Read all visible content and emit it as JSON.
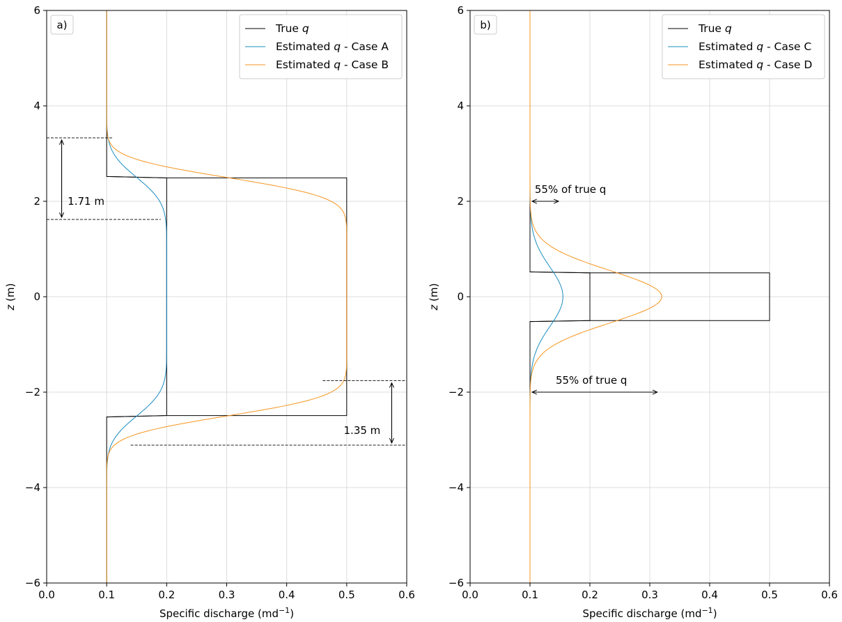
{
  "colors": {
    "true": "#000000",
    "case1": "#1a8cbf",
    "case2": "#f5951f",
    "grid": "#dcdcdc"
  },
  "chart_data": [
    {
      "type": "line",
      "panel_label": "a)",
      "xlabel": "Specific discharge (md",
      "xlabel_sup": "−1",
      "xlabel_close": ")",
      "ylabel_var": "z",
      "ylabel_unit": " (m)",
      "xlim": [
        0,
        0.6
      ],
      "ylim": [
        -6,
        6
      ],
      "x_ticks": [
        "0.0",
        "0.1",
        "0.2",
        "0.3",
        "0.4",
        "0.5",
        "0.6"
      ],
      "y_ticks": [
        "−6",
        "−4",
        "−2",
        "0",
        "2",
        "4",
        "6"
      ],
      "grid": true,
      "legend": {
        "placement": "top-right",
        "entries": [
          {
            "prefix": "True ",
            "var": "q",
            "suffix": ""
          },
          {
            "prefix": "Estimated ",
            "var": "q",
            "suffix": " - Case A"
          },
          {
            "prefix": "Estimated ",
            "var": "q",
            "suffix": " - Case B"
          }
        ]
      },
      "true_profile": {
        "base": 0.1,
        "peak": 0.5,
        "z_low": -2.5,
        "z_high": 2.5,
        "wide_peak": 0.2
      },
      "series": [
        {
          "key": "true",
          "name": "True q"
        },
        {
          "key": "case1",
          "name": "Estimated q - Case A",
          "base": 0.1,
          "peak": 0.2,
          "half_width": 2.5,
          "sigma": 0.42
        },
        {
          "key": "case2",
          "name": "Estimated q - Case B",
          "base": 0.1,
          "peak": 0.5,
          "half_width": 2.5,
          "sigma": 0.33
        }
      ],
      "annotations": [
        {
          "text": "1.71 m",
          "kind": "span",
          "x_arrow": 0.025,
          "z1": 3.33,
          "z2": 1.62,
          "line_x_end_top": 0.11,
          "line_x_end_bottom": 0.19,
          "text_x": 0.035,
          "text_z": 2.0
        },
        {
          "text": "1.35 m",
          "kind": "span",
          "x_arrow": 0.575,
          "z1": -1.76,
          "z2": -3.11,
          "line_x_start_top": 0.46,
          "line_x_start_bottom": 0.14,
          "text_x": 0.495,
          "text_z": -2.8
        }
      ]
    },
    {
      "type": "line",
      "panel_label": "b)",
      "xlabel": "Specific discharge (md",
      "xlabel_sup": "−1",
      "xlabel_close": ")",
      "ylabel_var": "z",
      "ylabel_unit": " (m)",
      "xlim": [
        0,
        0.6
      ],
      "ylim": [
        -6,
        6
      ],
      "x_ticks": [
        "0.0",
        "0.1",
        "0.2",
        "0.3",
        "0.4",
        "0.5",
        "0.6"
      ],
      "y_ticks": [
        "−6",
        "−4",
        "−2",
        "0",
        "2",
        "4",
        "6"
      ],
      "grid": true,
      "legend": {
        "placement": "top-right",
        "entries": [
          {
            "prefix": "True ",
            "var": "q",
            "suffix": ""
          },
          {
            "prefix": "Estimated ",
            "var": "q",
            "suffix": " - Case C"
          },
          {
            "prefix": "Estimated ",
            "var": "q",
            "suffix": " - Case D"
          }
        ]
      },
      "true_profile": {
        "base": 0.1,
        "peak": 0.5,
        "z_low": -0.5,
        "z_high": 0.5,
        "wide_peak": 0.2
      },
      "series": [
        {
          "key": "true",
          "name": "True q"
        },
        {
          "key": "case1",
          "name": "Estimated q - Case C",
          "base": 0.1,
          "peak": 0.155,
          "sigma": 0.62
        },
        {
          "key": "case2",
          "name": "Estimated q - Case D",
          "base": 0.1,
          "peak": 0.32,
          "sigma": 0.55
        }
      ],
      "annotations": [
        {
          "text": "55% of true q",
          "kind": "width",
          "z": 2.0,
          "x1": 0.1,
          "x2": 0.15,
          "text_x": 0.108,
          "text_z": 2.25
        },
        {
          "text": "55% of true q",
          "kind": "width",
          "z": -2.0,
          "x1": 0.1,
          "x2": 0.315,
          "text_x": 0.143,
          "text_z": -1.75
        }
      ]
    }
  ]
}
